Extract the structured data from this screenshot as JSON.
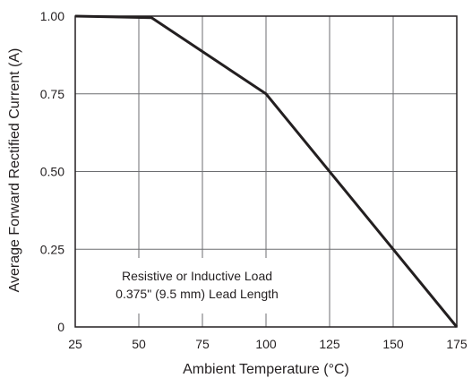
{
  "chart_data": {
    "type": "line",
    "xlabel": "Ambient Temperature (°C)",
    "ylabel": "Average Forward Rectified Current (A)",
    "xlim": [
      25,
      175
    ],
    "ylim": [
      0,
      1.0
    ],
    "x_ticks": [
      25,
      50,
      75,
      100,
      125,
      150,
      175
    ],
    "y_ticks": [
      0,
      0.25,
      0.5,
      0.75,
      1.0
    ],
    "x_tick_labels": [
      "25",
      "50",
      "75",
      "100",
      "125",
      "150",
      "175"
    ],
    "y_tick_labels": [
      "0",
      "0.25",
      "0.50",
      "0.75",
      "1.00"
    ],
    "grid": true,
    "series": [
      {
        "x": [
          25,
          55,
          100,
          175
        ],
        "y": [
          1.0,
          0.995,
          0.75,
          0.0
        ]
      }
    ],
    "annotations": [
      "Resistive or Inductive Load",
      "0.375\" (9.5 mm) Lead Length"
    ],
    "colors": {
      "grid": "#6d6e71",
      "line": "#231f20",
      "frame": "#231f20"
    }
  }
}
